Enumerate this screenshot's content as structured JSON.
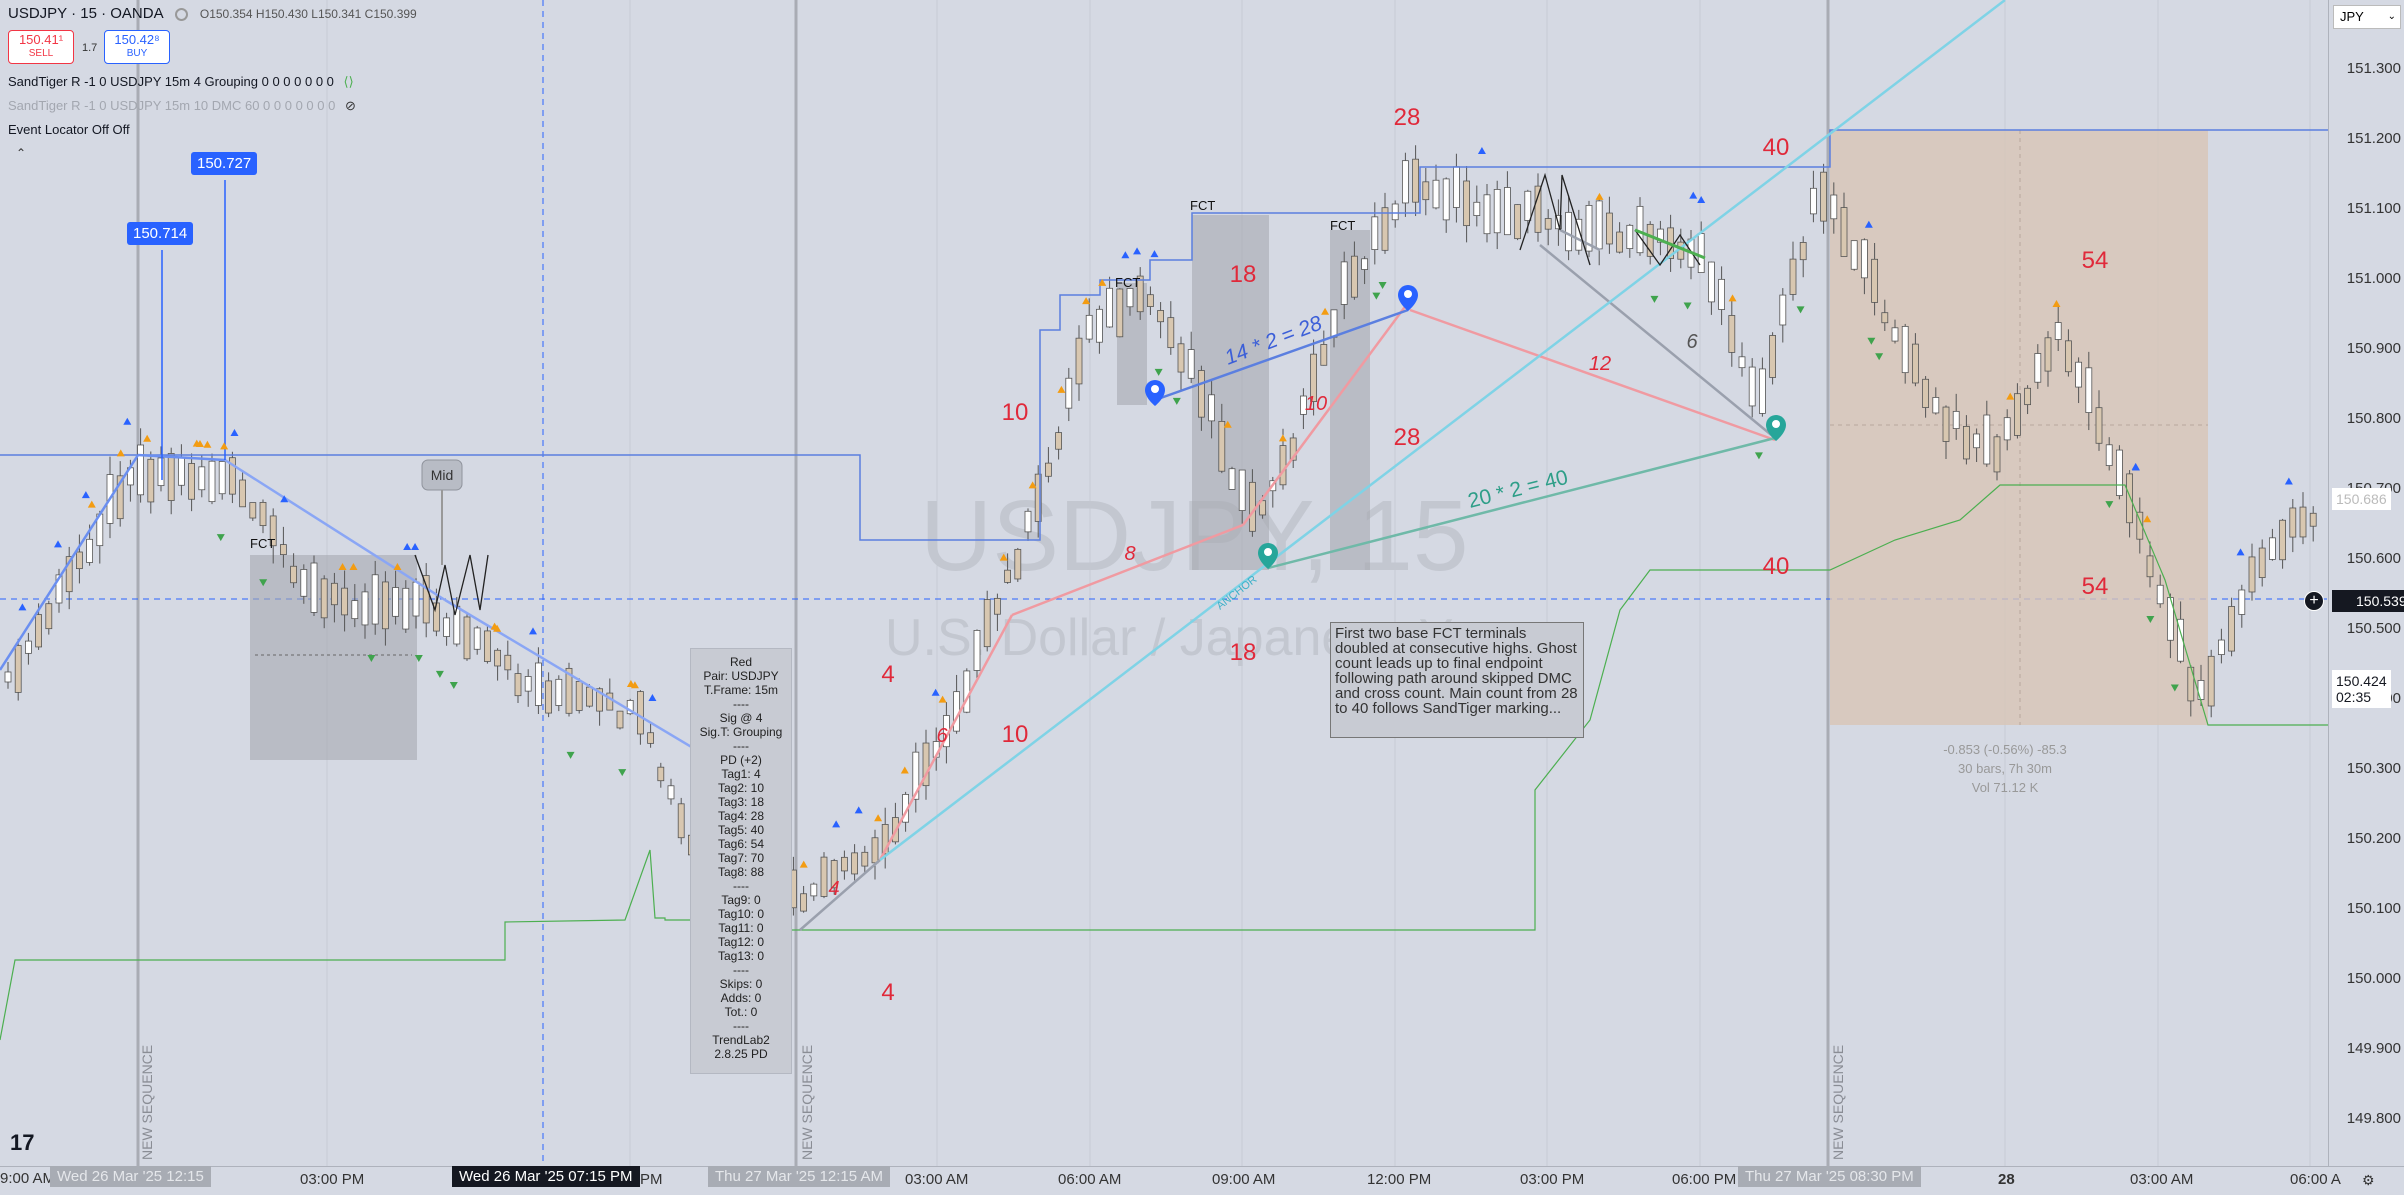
{
  "header": {
    "symbol_title": "USDJPY · 15 · OANDA",
    "ohlc": "O150.354 H150.430 L150.341 C150.399",
    "sell_price": "150.41¹",
    "sell_label": "SELL",
    "spread": "1.7",
    "buy_price": "150.42⁸",
    "buy_label": "BUY"
  },
  "indicators": {
    "line1": "SandTiger R -1 0 USDJPY 15m 4 Grouping 0 0 0 0 0 0 0",
    "line2": "SandTiger R -1 0 USDJPY 15m 10 DMC 60 0 0 0 0 0 0 0",
    "line3": "Event Locator Off Off"
  },
  "watermark": {
    "symbol": "USDJPY, 15",
    "name": "U.S. Dollar / Japanese Yen"
  },
  "price_tags": {
    "tag1": "150.714",
    "tag2": "150.727"
  },
  "price_axis": {
    "currency": "JPY",
    "ticks": [
      "151.300",
      "151.200",
      "151.100",
      "151.000",
      "150.900",
      "150.800",
      "150.700",
      "150.600",
      "150.500",
      "150.400",
      "150.300",
      "150.200",
      "150.100",
      "150.000",
      "149.900",
      "149.800"
    ],
    "crosshair_price": "150.539",
    "ghost_price": "150.686",
    "current_price": "150.424",
    "countdown": "02:35"
  },
  "time_axis": {
    "labels": [
      "03:00 PM",
      "PM",
      "27",
      "03:00 AM",
      "06:00 AM",
      "09:00 AM",
      "12:00 PM",
      "03:00 PM",
      "06:00 PM",
      "28",
      "03:00 AM",
      "06:00 A"
    ],
    "left_stub": "9:00 AM",
    "box1": "Wed 26 Mar '25   12:15",
    "box2": "Wed 26 Mar '25   07:15 PM",
    "box3": "Thu 27 Mar '25   12:15 AM",
    "box4": "Thu 27 Mar '25   08:30 PM"
  },
  "info_panel": {
    "lines": [
      "Red",
      "Pair: USDJPY",
      "T.Frame: 15m",
      "----",
      "Sig @ 4",
      "Sig.T: Grouping",
      "----",
      "PD (+2)",
      "Tag1: 4",
      "Tag2: 10",
      "Tag3: 18",
      "Tag4: 28",
      "Tag5: 40",
      "Tag6: 54",
      "Tag7: 70",
      "Tag8: 88",
      "----",
      "Tag9: 0",
      "Tag10: 0",
      "Tag11: 0",
      "Tag12: 0",
      "Tag13: 0",
      "----",
      "Skips: 0",
      "Adds: 0",
      "Tot.: 0",
      "----",
      "TrendLab2",
      "2.8.25 PD"
    ]
  },
  "annotation": "First two base FCT terminals doubled at consecutive highs. Ghost count leads up to final endpoint following path around skipped DMC and cross count. Main count from 28 to 40 follows SandTiger marking...",
  "measure": {
    "line1": "-0.853 (-0.56%) -85.3",
    "line2": "30 bars, 7h 30m",
    "line3": "Vol 71.12 K"
  },
  "text_marks": {
    "mid": "Mid",
    "fct": "FCT",
    "new_sequence": "NEW SEQUENCE",
    "eq1": "14 * 2 = 28",
    "eq2": "20 * 2 = 40",
    "anchor": "ANCHOR",
    "big_red": [
      "28",
      "18",
      "10",
      "10",
      "4",
      "4",
      "18",
      "28",
      "40",
      "40",
      "54",
      "54",
      "8",
      "10",
      "12",
      "6",
      "6",
      "4"
    ]
  },
  "tv_logo": "17",
  "colors": {
    "background": "#d5d9e3",
    "blue": "#2962ff",
    "red": "#f23645",
    "green": "#4caf50",
    "teal": "#26a69a",
    "cyan": "#7fd3e6"
  }
}
